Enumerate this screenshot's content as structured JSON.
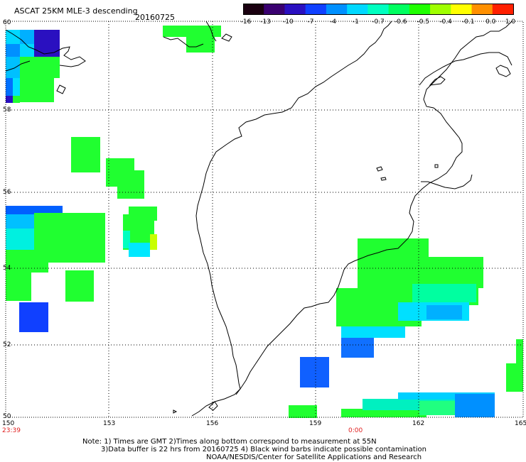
{
  "header": {
    "title": "ASCAT 25KM MLE-3 descending",
    "date": "20160725"
  },
  "colorbar": {
    "labels": [
      "-16",
      "-13",
      "-10",
      "-7",
      "-4",
      "-1",
      "-0.7",
      "-0.6",
      "-0.5",
      "-0.4",
      "-0.1",
      "0.0",
      "1.0"
    ],
    "colors": [
      "#1a0010",
      "#3a0070",
      "#2a10c0",
      "#1040ff",
      "#0090ff",
      "#00d8ff",
      "#00ffc0",
      "#00ff60",
      "#20ff00",
      "#a0ff00",
      "#ffff00",
      "#ff9000",
      "#ff2000"
    ]
  },
  "axes": {
    "lat_labels": [
      "60",
      "58",
      "56",
      "54",
      "52",
      "50"
    ],
    "lon_labels": [
      "150",
      "153",
      "156",
      "159",
      "162",
      "165"
    ]
  },
  "time_marks": {
    "left": "23:39",
    "mid": "0:00"
  },
  "notes": {
    "line1": "Note: 1) Times are GMT 2)Times along bottom correspond to measurement at 55N",
    "line2": "3)Data buffer is 22 hrs from 20160725 4) Black wind barbs indicate possible contamination",
    "line3": "NOAA/NESDIS/Center for Satellite Applications and Research"
  }
}
